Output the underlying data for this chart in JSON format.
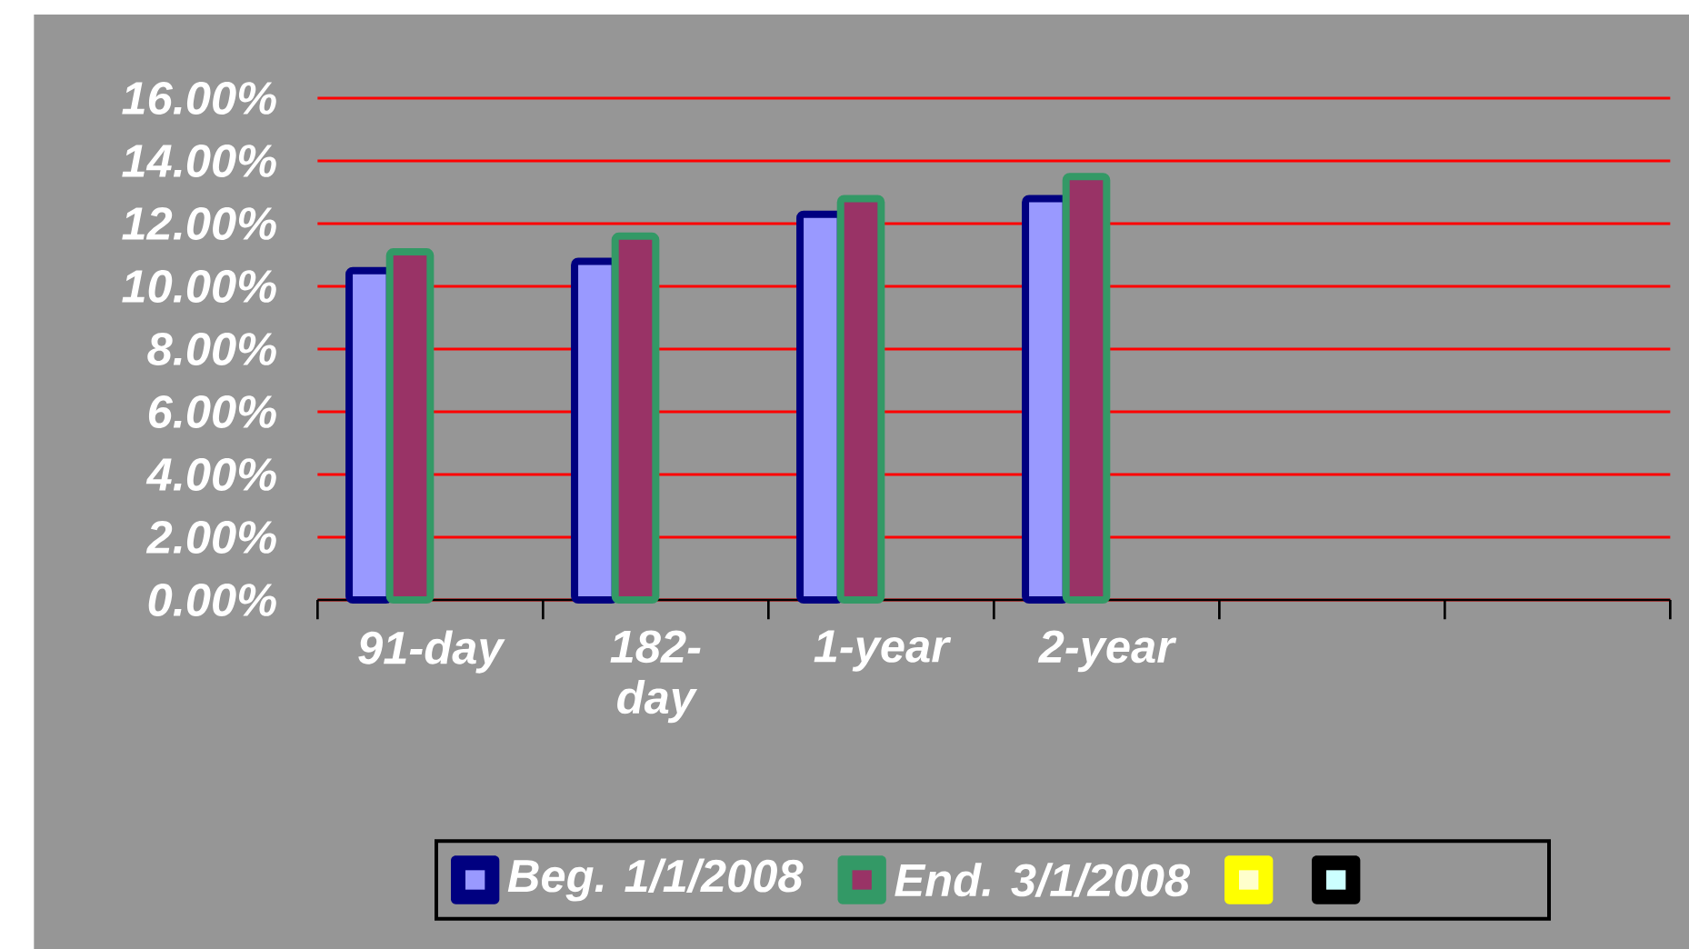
{
  "chart_data": {
    "type": "bar",
    "categories": [
      "91-day",
      "182-day",
      "1-year",
      "2-year",
      null,
      null
    ],
    "series": [
      {
        "name": "Beg. 1/1/2008",
        "color": "#9999ff",
        "values": [
          10.5,
          10.8,
          12.3,
          12.8,
          null,
          null
        ]
      },
      {
        "name": "End. 3/1/2008",
        "color": "#993366",
        "values": [
          11.1,
          11.6,
          12.8,
          13.5,
          null,
          null
        ]
      },
      {
        "color": "#ffffcc",
        "values": [
          null,
          null,
          null,
          null,
          null,
          null
        ]
      },
      {
        "color": "#ccffff",
        "values": [
          null,
          null,
          null,
          null,
          null,
          null
        ]
      }
    ],
    "ylim": [
      0,
      16
    ],
    "yticks": [
      {
        "value": 0,
        "label": "0.00%"
      },
      {
        "value": 2,
        "label": "2.00%"
      },
      {
        "value": 4,
        "label": "4.00%"
      },
      {
        "value": 6,
        "label": "6.00%"
      },
      {
        "value": 8,
        "label": "8.00%"
      },
      {
        "value": 10,
        "label": "10.00%"
      },
      {
        "value": 12,
        "label": "12.00%"
      },
      {
        "value": 14,
        "label": "14.00%"
      },
      {
        "value": 16,
        "label": "16.00%"
      }
    ],
    "grid": "y",
    "legend": "bottom"
  }
}
